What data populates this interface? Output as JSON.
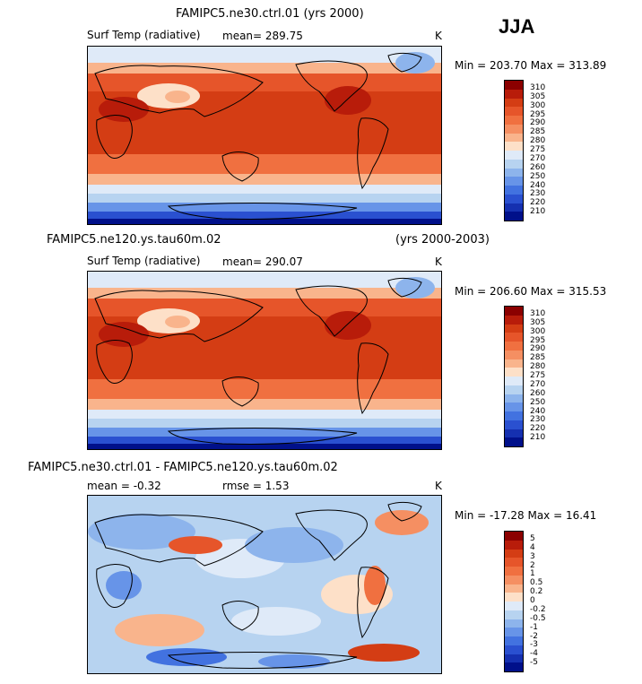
{
  "season": "JJA",
  "panels": [
    {
      "id": "p1",
      "title_left": "FAMIPC5.ne30.ctrl.01 (yrs 2000)",
      "title_right": "",
      "variable": "Surf Temp (radiative)",
      "stat1": "mean= 289.75",
      "stat2": "",
      "units": "K",
      "minmax": "Min = 203.70 Max = 313.89",
      "levels": [
        "310",
        "305",
        "300",
        "295",
        "290",
        "285",
        "280",
        "275",
        "270",
        "260",
        "250",
        "240",
        "230",
        "220",
        "210"
      ],
      "colors": [
        "#8b0000",
        "#b81c0a",
        "#d43d14",
        "#e6552a",
        "#f07040",
        "#f58f62",
        "#f9b48c",
        "#fde0c8",
        "#dfeaf8",
        "#b7d3f0",
        "#8db4ec",
        "#6794e8",
        "#4272e0",
        "#2a50d0",
        "#1530b0",
        "#00108a"
      ]
    },
    {
      "id": "p2",
      "title_left": "FAMIPC5.ne120.ys.tau60m.02",
      "title_right": "(yrs 2000-2003)",
      "variable": "Surf Temp (radiative)",
      "stat1": "mean= 290.07",
      "stat2": "",
      "units": "K",
      "minmax": "Min = 206.60 Max = 315.53",
      "levels": [
        "310",
        "305",
        "300",
        "295",
        "290",
        "285",
        "280",
        "275",
        "270",
        "260",
        "250",
        "240",
        "230",
        "220",
        "210"
      ],
      "colors": [
        "#8b0000",
        "#b81c0a",
        "#d43d14",
        "#e6552a",
        "#f07040",
        "#f58f62",
        "#f9b48c",
        "#fde0c8",
        "#dfeaf8",
        "#b7d3f0",
        "#8db4ec",
        "#6794e8",
        "#4272e0",
        "#2a50d0",
        "#1530b0",
        "#00108a"
      ]
    },
    {
      "id": "p3",
      "title_left": "FAMIPC5.ne30.ctrl.01 - FAMIPC5.ne120.ys.tau60m.02",
      "title_right": "",
      "variable": "",
      "stat1": "mean =   -0.32",
      "stat2": "rmse =    1.53",
      "units": "K",
      "minmax": "Min = -17.28 Max =  16.41",
      "levels": [
        "5",
        "4",
        "3",
        "2",
        "1",
        "0.5",
        "0.2",
        "0",
        "-0.2",
        "-0.5",
        "-1",
        "-2",
        "-3",
        "-4",
        "-5"
      ],
      "colors": [
        "#8b0000",
        "#b81c0a",
        "#d43d14",
        "#e6552a",
        "#f07040",
        "#f58f62",
        "#f9b48c",
        "#fde0c8",
        "#dfeaf8",
        "#b7d3f0",
        "#8db4ec",
        "#6794e8",
        "#4272e0",
        "#2a50d0",
        "#1530b0",
        "#00108a"
      ]
    }
  ]
}
